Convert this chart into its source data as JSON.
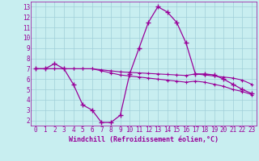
{
  "x": [
    0,
    1,
    2,
    3,
    4,
    5,
    6,
    7,
    8,
    9,
    10,
    11,
    12,
    13,
    14,
    15,
    16,
    17,
    18,
    19,
    20,
    21,
    22,
    23
  ],
  "temp_curve": [
    7.0,
    7.0,
    7.5,
    7.0,
    5.5,
    3.5,
    3.0,
    1.8,
    1.8,
    2.5,
    6.5,
    9.0,
    11.5,
    13.0,
    12.5,
    11.5,
    9.5,
    6.5,
    6.5,
    6.4,
    6.0,
    5.5,
    5.0,
    4.6
  ],
  "trend1": [
    7.0,
    7.0,
    7.0,
    7.0,
    7.0,
    7.0,
    7.0,
    6.9,
    6.8,
    6.7,
    6.65,
    6.6,
    6.55,
    6.5,
    6.45,
    6.4,
    6.35,
    6.5,
    6.4,
    6.3,
    6.2,
    6.1,
    5.9,
    5.5
  ],
  "trend2": [
    7.0,
    7.0,
    7.0,
    7.0,
    7.0,
    7.0,
    7.0,
    6.8,
    6.6,
    6.4,
    6.3,
    6.2,
    6.1,
    6.0,
    5.9,
    5.8,
    5.7,
    5.8,
    5.7,
    5.5,
    5.3,
    5.0,
    4.8,
    4.5
  ],
  "bg_color": "#c8eef0",
  "line_color": "#990099",
  "grid_color": "#a0cfd8",
  "xlabel": "Windchill (Refroidissement éolien,°C)",
  "xlim_min": -0.5,
  "xlim_max": 23.5,
  "ylim_min": 1.5,
  "ylim_max": 13.5,
  "yticks": [
    2,
    3,
    4,
    5,
    6,
    7,
    8,
    9,
    10,
    11,
    12,
    13
  ],
  "xticks": [
    0,
    1,
    2,
    3,
    4,
    5,
    6,
    7,
    8,
    9,
    10,
    11,
    12,
    13,
    14,
    15,
    16,
    17,
    18,
    19,
    20,
    21,
    22,
    23
  ]
}
